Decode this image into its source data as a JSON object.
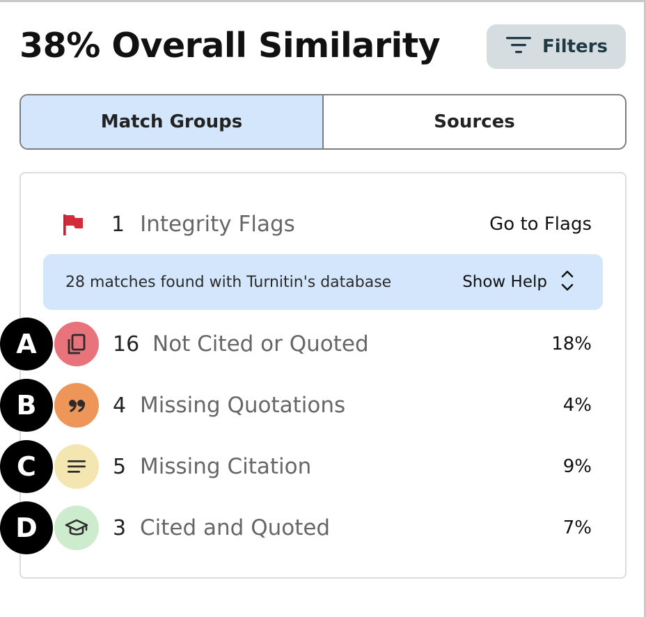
{
  "header": {
    "title": "38% Overall Similarity",
    "filters_label": "Filters"
  },
  "tabs": [
    {
      "label": "Match Groups",
      "active": true
    },
    {
      "label": "Sources",
      "active": false
    }
  ],
  "integrity": {
    "count": "1",
    "label": "Integrity Flags",
    "link": "Go to Flags"
  },
  "info": {
    "message": "28 matches found with Turnitin's database",
    "help_label": "Show Help"
  },
  "groups": [
    {
      "letter": "A",
      "count": "16",
      "label": "Not Cited or Quoted",
      "percent": "18%",
      "icon": "copy-icon",
      "color": "#e8737a"
    },
    {
      "letter": "B",
      "count": "4",
      "label": "Missing Quotations",
      "percent": "4%",
      "icon": "quote-icon",
      "color": "#ee955a"
    },
    {
      "letter": "C",
      "count": "5",
      "label": "Missing Citation",
      "percent": "9%",
      "icon": "lines-icon",
      "color": "#f3e6b0"
    },
    {
      "letter": "D",
      "count": "3",
      "label": "Cited and Quoted",
      "percent": "7%",
      "icon": "graduation-cap-icon",
      "color": "#cdeccd"
    }
  ]
}
